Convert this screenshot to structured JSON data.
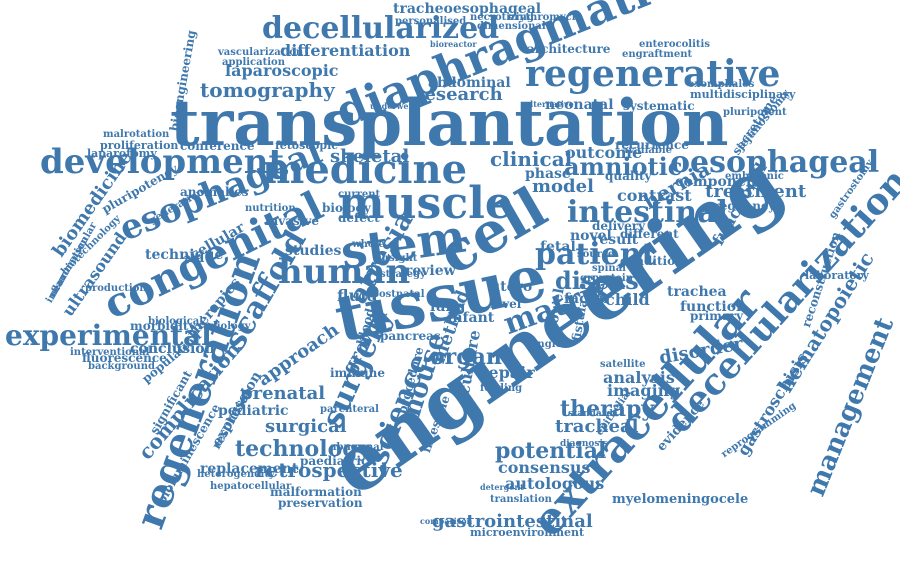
{
  "color": "#3f78ad",
  "words": [
    "transplantation",
    "engineering",
    "tissue",
    "cell",
    "diaphragmatic",
    "decellularized",
    "regenerative",
    "medicine",
    "muscle",
    "development",
    "esophageal",
    "stem",
    "congenital",
    "human",
    "patient",
    "intestinal",
    "oesophageal",
    "amniotic",
    "extracellular",
    "decellularization",
    "management",
    "regeneration",
    "scaffold",
    "experimental",
    "surgery",
    "science",
    "mouse",
    "matrix",
    "disease",
    "therapy",
    "technology",
    "retrospective",
    "potential",
    "gastrointestinal",
    "consensus",
    "autologous",
    "tracheal",
    "hematopoietic",
    "gastroschisis",
    "myelomeningocele",
    "tomography",
    "laparoscopic",
    "differentiation",
    "research",
    "clinical",
    "hernia",
    "treatment",
    "model",
    "tracheoesophageal",
    "architecture",
    "enterocolitis",
    "engraftment",
    "abdominal",
    "neonatal",
    "systematic",
    "multidisciplinary",
    "exomphalos",
    "skeletal",
    "outcome",
    "recurrence",
    "phase",
    "fetal",
    "repair",
    "analysis",
    "imaging",
    "prenatal",
    "surgical",
    "pediatric",
    "complication",
    "conclusion",
    "replacement",
    "preservation",
    "malformation",
    "microenvironment",
    "technique",
    "biomedicine",
    "ultrasound",
    "neuromuscular",
    "inflammation",
    "anomalies",
    "conference",
    "pluripotency",
    "laparotomy",
    "proliferation",
    "bioengineering",
    "malrotation",
    "vascularization",
    "application",
    "component",
    "pregnancy",
    "functional",
    "embryonic",
    "pluripotent",
    "jejunostomy",
    "secretome",
    "gastrostomy",
    "reconstruction",
    "laboratory",
    "evidence",
    "trachea",
    "function",
    "primary",
    "disorder",
    "bioluminescence",
    "heterogeneity",
    "hepatocellular",
    "paediatric",
    "fluorescence",
    "background",
    "morbidity",
    "interventional",
    "biotechnology",
    "production",
    "contrast",
    "quality",
    "factor",
    "child",
    "fluid",
    "organ",
    "growth",
    "utero",
    "lung",
    "infant",
    "review",
    "studies",
    "therapies",
    "atresia",
    "conclusion",
    "expression",
    "resolution",
    "significant",
    "population",
    "approach",
    "biology",
    "invasive",
    "nutrition",
    "acellular",
    "generation",
    "biological",
    "radiology",
    "translation",
    "comparison",
    "detergent",
    "epithelial",
    "diagnosis",
    "standard",
    "satellite",
    "reprogramming",
    "group",
    "spinal",
    "protein",
    "novel",
    "source",
    "result",
    "different",
    "available",
    "personalised",
    "necrotizing",
    "erythromycin",
    "dimensional",
    "bioreactor",
    "alternative",
    "underwent",
    "fetoscopic",
    "feeding",
    "culture",
    "method",
    "intestine",
    "procedure",
    "pancreas",
    "immune",
    "blood",
    "abnormal",
    "parenteral",
    "current",
    "defect",
    "delivery",
    "condition",
    "whole",
    "insight",
    "strategy",
    "postnatal",
    "level",
    "bowel",
    "fistula",
    "single"
  ]
}
